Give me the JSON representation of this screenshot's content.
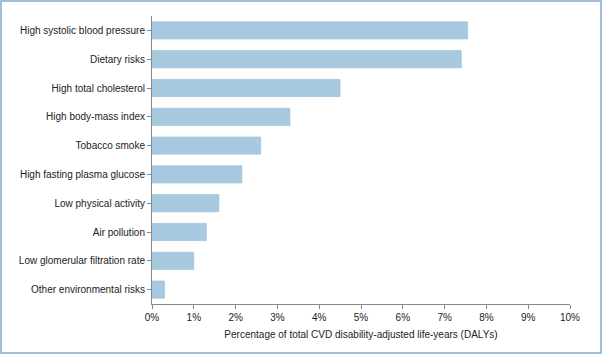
{
  "chart_data": {
    "type": "bar",
    "orientation": "horizontal",
    "categories": [
      "High systolic blood pressure",
      "Dietary risks",
      "High total cholesterol",
      "High body-mass index",
      "Tobacco smoke",
      "High fasting plasma glucose",
      "Low physical activity",
      "Air pollution",
      "Low glomerular filtration rate",
      "Other environmental risks"
    ],
    "values": [
      7.55,
      7.4,
      4.5,
      3.3,
      2.6,
      2.15,
      1.6,
      1.3,
      1.0,
      0.3
    ],
    "color": "#a9c9e1",
    "x_label": "Percentage of total CVD disability-adjusted life-years (DALYs)",
    "xlim": [
      0,
      10
    ],
    "xticks": [
      {
        "value": 0,
        "label": "0%"
      },
      {
        "value": 1,
        "label": "1%"
      },
      {
        "value": 2,
        "label": "2%"
      },
      {
        "value": 3,
        "label": "3%"
      },
      {
        "value": 4,
        "label": "4%"
      },
      {
        "value": 5,
        "label": "5%"
      },
      {
        "value": 6,
        "label": "6%"
      },
      {
        "value": 7,
        "label": "7%"
      },
      {
        "value": 8,
        "label": "8%"
      },
      {
        "value": 9,
        "label": "9%"
      },
      {
        "value": 10,
        "label": "10%"
      }
    ],
    "grid": false
  }
}
